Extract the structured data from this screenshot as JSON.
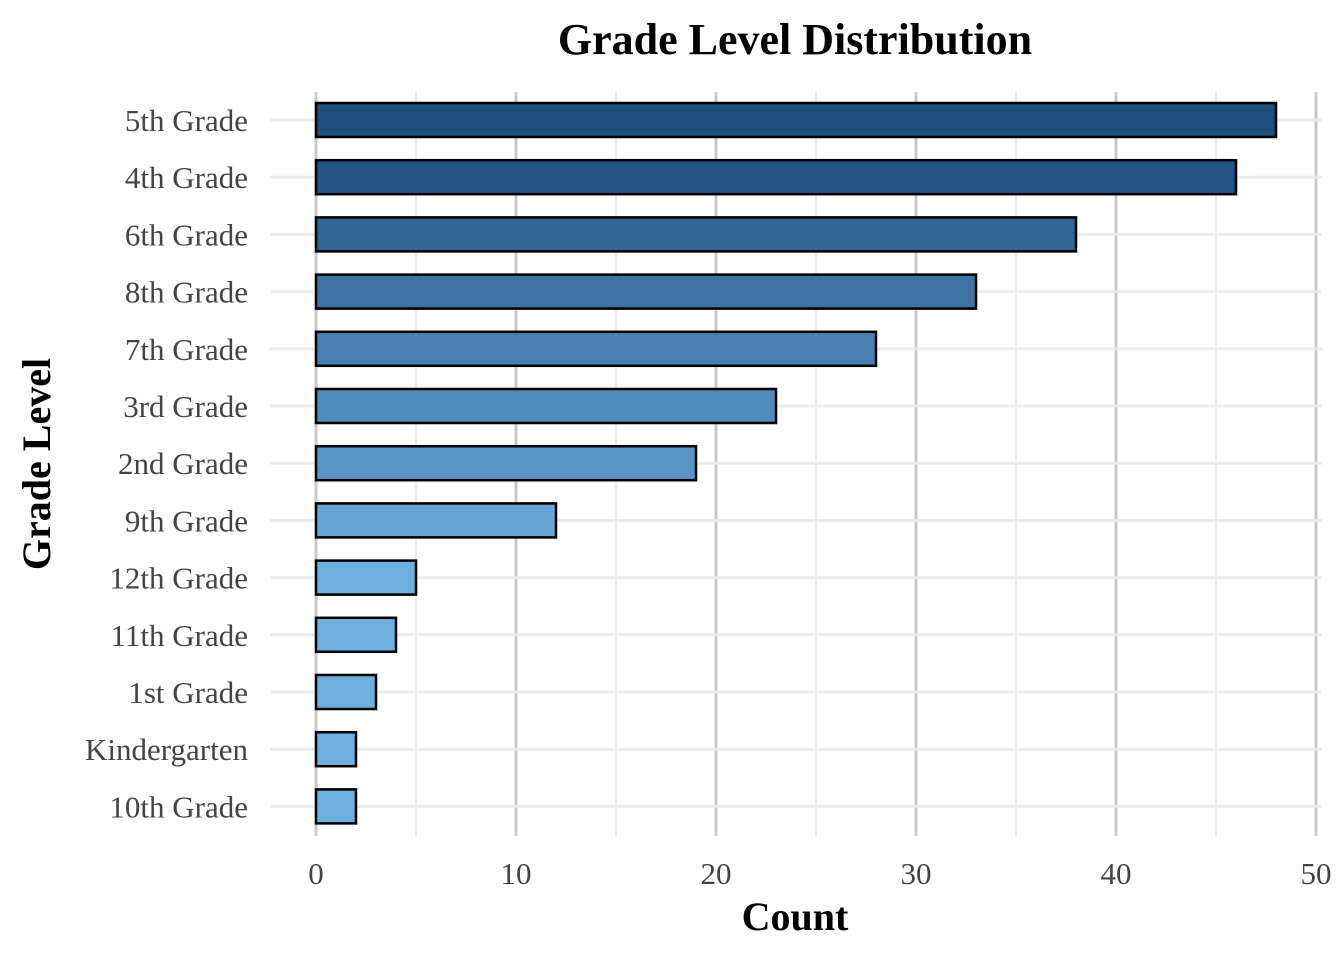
{
  "chart_data": {
    "type": "bar",
    "orientation": "horizontal",
    "title": "Grade Level Distribution",
    "xlabel": "Count",
    "ylabel": "Grade Level",
    "xlim": [
      0,
      50
    ],
    "x_ticks": [
      0,
      10,
      20,
      30,
      40,
      50
    ],
    "grid": true,
    "legend": "none",
    "categories": [
      "5th Grade",
      "4th Grade",
      "6th Grade",
      "8th Grade",
      "7th Grade",
      "3rd Grade",
      "2nd Grade",
      "9th Grade",
      "12th Grade",
      "11th Grade",
      "1st Grade",
      "Kindergarten",
      "10th Grade"
    ],
    "values": [
      48,
      46,
      38,
      33,
      28,
      23,
      19,
      12,
      5,
      4,
      3,
      2,
      2
    ],
    "colors": {
      "bar_max": "#1f4e7c",
      "bar_min": "#6fafe0",
      "bar_outline": "#000000",
      "grid_major": "#c8c8c8",
      "grid_minor": "#ebebeb",
      "background": "#ffffff"
    }
  }
}
